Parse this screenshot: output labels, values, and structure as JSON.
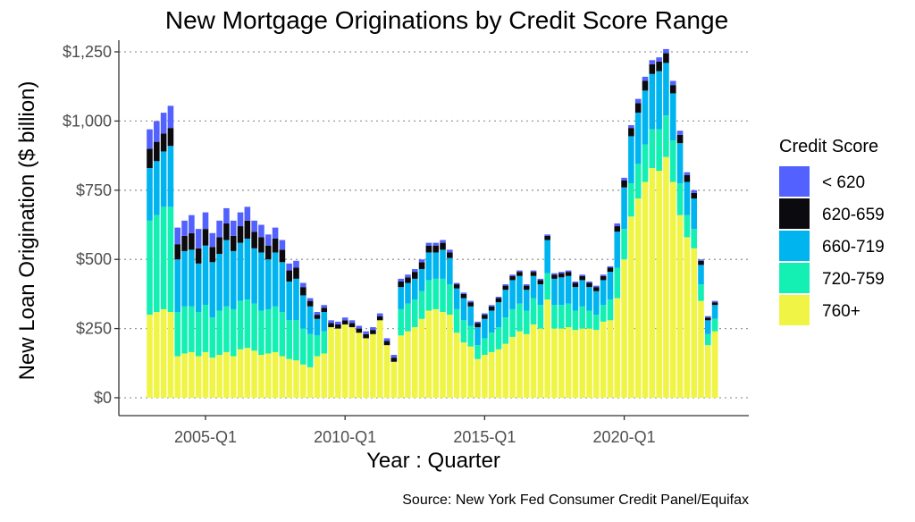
{
  "chart_data": {
    "type": "bar",
    "stacked": true,
    "title": "New Mortgage Originations by Credit Score Range",
    "xlabel": "Year : Quarter",
    "ylabel": "New Loan Origination ($ billion)",
    "source": "Source: New York Fed Consumer Credit Panel/Equifax",
    "legend_title": "Credit Score",
    "legend_position": "right",
    "grid": "horizontal dotted",
    "ylim": [
      0,
      1250
    ],
    "y_ticks": [
      0,
      250,
      500,
      750,
      1000,
      1250
    ],
    "y_tick_labels": [
      "$0",
      "$250",
      "$500",
      "$750",
      "$1,000",
      "$1,250"
    ],
    "x_tick_labels": [
      "2005-Q1",
      "2010-Q1",
      "2015-Q1",
      "2020-Q1"
    ],
    "categories": [
      "2003-Q1",
      "2003-Q2",
      "2003-Q3",
      "2003-Q4",
      "2004-Q1",
      "2004-Q2",
      "2004-Q3",
      "2004-Q4",
      "2005-Q1",
      "2005-Q2",
      "2005-Q3",
      "2005-Q4",
      "2006-Q1",
      "2006-Q2",
      "2006-Q3",
      "2006-Q4",
      "2007-Q1",
      "2007-Q2",
      "2007-Q3",
      "2007-Q4",
      "2008-Q1",
      "2008-Q2",
      "2008-Q3",
      "2008-Q4",
      "2009-Q1",
      "2009-Q2",
      "2009-Q3",
      "2009-Q4",
      "2010-Q1",
      "2010-Q2",
      "2010-Q3",
      "2010-Q4",
      "2011-Q1",
      "2011-Q2",
      "2011-Q3",
      "2011-Q4",
      "2012-Q1",
      "2012-Q2",
      "2012-Q3",
      "2012-Q4",
      "2013-Q1",
      "2013-Q2",
      "2013-Q3",
      "2013-Q4",
      "2014-Q1",
      "2014-Q2",
      "2014-Q3",
      "2014-Q4",
      "2015-Q1",
      "2015-Q2",
      "2015-Q3",
      "2015-Q4",
      "2016-Q1",
      "2016-Q2",
      "2016-Q3",
      "2016-Q4",
      "2017-Q1",
      "2017-Q2",
      "2017-Q3",
      "2017-Q4",
      "2018-Q1",
      "2018-Q2",
      "2018-Q3",
      "2018-Q4",
      "2019-Q1",
      "2019-Q2",
      "2019-Q3",
      "2019-Q4",
      "2020-Q1",
      "2020-Q2",
      "2020-Q3",
      "2020-Q4",
      "2021-Q1",
      "2021-Q2",
      "2021-Q3",
      "2021-Q4",
      "2022-Q1",
      "2022-Q2",
      "2022-Q3",
      "2022-Q4",
      "2023-Q1",
      "2023-Q2"
    ],
    "series": [
      {
        "name": "760+",
        "color": "#f0f545",
        "values": [
          300,
          310,
          320,
          310,
          150,
          160,
          165,
          150,
          165,
          145,
          155,
          165,
          150,
          175,
          180,
          170,
          155,
          160,
          165,
          150,
          140,
          135,
          120,
          110,
          150,
          160,
          255,
          250,
          265,
          255,
          235,
          215,
          230,
          280,
          190,
          130,
          225,
          240,
          255,
          285,
          315,
          320,
          310,
          300,
          235,
          200,
          185,
          140,
          155,
          165,
          175,
          195,
          220,
          240,
          230,
          265,
          250,
          355,
          250,
          250,
          255,
          245,
          250,
          250,
          245,
          275,
          280,
          360,
          500,
          655,
          720,
          780,
          830,
          820,
          870,
          780,
          660,
          580,
          540,
          350,
          190,
          240
        ]
      },
      {
        "name": "720-759",
        "color": "#14f0b4",
        "values": [
          340,
          350,
          370,
          380,
          160,
          170,
          165,
          160,
          170,
          145,
          160,
          165,
          170,
          175,
          175,
          170,
          160,
          160,
          165,
          160,
          140,
          145,
          130,
          120,
          75,
          80,
          0,
          0,
          0,
          0,
          0,
          0,
          0,
          0,
          0,
          0,
          95,
          100,
          100,
          100,
          110,
          110,
          120,
          110,
          85,
          80,
          75,
          50,
          60,
          70,
          80,
          95,
          100,
          100,
          85,
          95,
          85,
          95,
          85,
          85,
          85,
          70,
          80,
          65,
          55,
          60,
          75,
          110,
          110,
          120,
          125,
          135,
          140,
          150,
          150,
          150,
          115,
          80,
          70,
          60,
          40,
          45
        ]
      },
      {
        "name": "660-719",
        "color": "#00b4f0",
        "values": [
          190,
          195,
          200,
          220,
          190,
          200,
          205,
          175,
          215,
          200,
          205,
          240,
          210,
          210,
          220,
          200,
          210,
          180,
          195,
          180,
          140,
          150,
          120,
          100,
          60,
          70,
          0,
          0,
          0,
          0,
          0,
          0,
          0,
          0,
          0,
          0,
          80,
          75,
          75,
          80,
          100,
          95,
          105,
          95,
          75,
          80,
          70,
          65,
          70,
          80,
          90,
          100,
          105,
          100,
          75,
          80,
          75,
          120,
          95,
          100,
          100,
          85,
          95,
          85,
          85,
          90,
          100,
          130,
          150,
          170,
          185,
          195,
          200,
          210,
          190,
          170,
          145,
          120,
          110,
          70,
          50,
          50
        ]
      },
      {
        "name": "620-659",
        "color": "#0b0b0f",
        "values": [
          70,
          70,
          65,
          65,
          55,
          55,
          60,
          55,
          60,
          55,
          60,
          60,
          55,
          60,
          65,
          60,
          55,
          50,
          50,
          45,
          40,
          40,
          30,
          20,
          15,
          15,
          15,
          15,
          15,
          15,
          15,
          15,
          15,
          15,
          15,
          15,
          20,
          20,
          25,
          25,
          25,
          25,
          25,
          20,
          15,
          15,
          15,
          15,
          15,
          15,
          15,
          15,
          15,
          15,
          15,
          15,
          15,
          15,
          15,
          15,
          15,
          15,
          15,
          15,
          15,
          15,
          15,
          20,
          25,
          30,
          35,
          35,
          35,
          35,
          35,
          30,
          30,
          25,
          20,
          15,
          10,
          10
        ]
      },
      {
        "name": "< 620",
        "color": "#5361ff",
        "values": [
          70,
          75,
          75,
          80,
          60,
          55,
          65,
          70,
          60,
          50,
          60,
          55,
          55,
          50,
          50,
          40,
          45,
          40,
          40,
          35,
          25,
          25,
          15,
          10,
          10,
          10,
          10,
          10,
          10,
          10,
          10,
          10,
          10,
          10,
          10,
          10,
          10,
          10,
          10,
          10,
          10,
          10,
          10,
          10,
          5,
          5,
          5,
          5,
          5,
          5,
          5,
          5,
          5,
          5,
          5,
          5,
          5,
          5,
          5,
          5,
          5,
          5,
          5,
          5,
          5,
          5,
          5,
          10,
          10,
          10,
          15,
          15,
          15,
          15,
          15,
          15,
          15,
          10,
          10,
          5,
          5,
          5
        ]
      }
    ]
  }
}
